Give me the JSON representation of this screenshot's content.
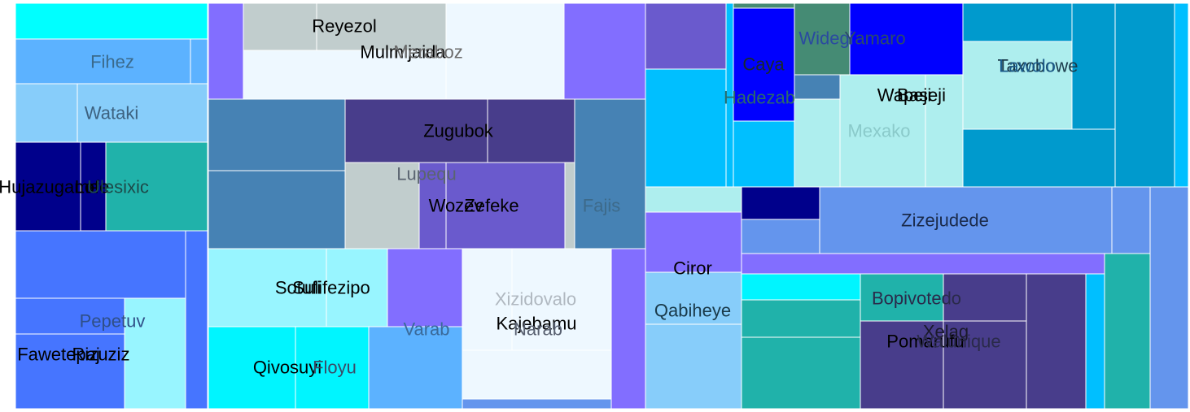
{
  "chart_data": {
    "type": "treemap",
    "title": "",
    "tiles": [
      {
        "label": "",
        "color": "#00ffff"
      },
      {
        "label": "Fihez",
        "color": "#5cb2ff"
      },
      {
        "label": "",
        "color": "#5cb2ff"
      },
      {
        "label": "Wataki",
        "color": "#87cdfa"
      },
      {
        "label": "",
        "color": "#87cdfa"
      },
      {
        "label": "Hujazugame",
        "color": "#00008b"
      },
      {
        "label": "Lofe",
        "color": "#00008b"
      },
      {
        "label": "Ulesixic",
        "color": "#20b2aa"
      },
      {
        "label": "",
        "color": "#4675ff"
      },
      {
        "label": "Pepetuv",
        "color": "#4675ff"
      },
      {
        "label": "Fawetepaj",
        "color": "#4675ff"
      },
      {
        "label": "Rizuziz",
        "color": "#98f5ff"
      },
      {
        "label": "",
        "color": "#4675ff"
      },
      {
        "label": "",
        "color": "#826eff"
      },
      {
        "label": "Reyezol",
        "color": "#c1cdcd"
      },
      {
        "label": "Mulmijaida",
        "color": "#eef8ff"
      },
      {
        "label": "Meraboz",
        "color": "#c1cdcd"
      },
      {
        "label": "",
        "color": "#eef8ff"
      },
      {
        "label": "",
        "color": "#826eff"
      },
      {
        "label": "",
        "color": "#4682b4"
      },
      {
        "label": "",
        "color": "#4682b4"
      },
      {
        "label": "Zugubok",
        "color": "#483d8b"
      },
      {
        "label": "",
        "color": "#483d8b"
      },
      {
        "label": "Lupequ",
        "color": "#c1cdcd"
      },
      {
        "label": "Wozev",
        "color": "#6a5acd"
      },
      {
        "label": "Zefeke",
        "color": "#6a5acd"
      },
      {
        "label": "",
        "color": "#c1cdcd"
      },
      {
        "label": "Fajis",
        "color": "#4682b4"
      },
      {
        "label": "Sotufi",
        "color": "#98f5ff"
      },
      {
        "label": "Sulifezipo",
        "color": "#98f5ff"
      },
      {
        "label": "",
        "color": "#826eff"
      },
      {
        "label": "Qivosuyi",
        "color": "#00f5ff"
      },
      {
        "label": "Floyu",
        "color": "#00f5ff"
      },
      {
        "label": "Varab",
        "color": "#5cb2ff"
      },
      {
        "label": "Xizidovalo",
        "color": "#eef8ff"
      },
      {
        "label": "Kajebamu",
        "color": "#eef8ff"
      },
      {
        "label": "Narab",
        "color": "#eef8ff"
      },
      {
        "label": "",
        "color": "#6495ed"
      },
      {
        "label": "",
        "color": "#826eff"
      },
      {
        "label": "",
        "color": "#6a5acd"
      },
      {
        "label": "",
        "color": "#00bfff"
      },
      {
        "label": "",
        "color": "#00bfff"
      },
      {
        "label": "Hadezab",
        "color": "#00bfff"
      },
      {
        "label": "",
        "color": "#0000ff"
      },
      {
        "label": "Caya",
        "color": "#458b74"
      },
      {
        "label": "",
        "color": "#458b74"
      },
      {
        "label": "Widegi",
        "color": "#0000ff"
      },
      {
        "label": "Yamaro",
        "color": "#4682b4"
      },
      {
        "label": "Mexako",
        "color": "#aeeeee"
      },
      {
        "label": "",
        "color": "#aeeeee"
      },
      {
        "label": "Wapeji",
        "color": "#aeeeee"
      },
      {
        "label": "Baseji",
        "color": "#aeeeee"
      },
      {
        "label": "Taxobowe",
        "color": "#009acd"
      },
      {
        "label": "Lawolo",
        "color": "#009acd"
      },
      {
        "label": "",
        "color": "#009acd"
      },
      {
        "label": "",
        "color": "#009acd"
      },
      {
        "label": "",
        "color": "#00bfff"
      },
      {
        "label": "",
        "color": "#aeeeee"
      },
      {
        "label": "",
        "color": "#826eff"
      },
      {
        "label": "Ciror",
        "color": "#87cdfa"
      },
      {
        "label": "Qabiheye",
        "color": "#87cdfa"
      },
      {
        "label": "",
        "color": "#00008b"
      },
      {
        "label": "",
        "color": "#6495ed"
      },
      {
        "label": "",
        "color": "#6495ed"
      },
      {
        "label": "Zizejudede",
        "color": "#6495ed"
      },
      {
        "label": "",
        "color": "#6495ed"
      },
      {
        "label": "",
        "color": "#826eff"
      },
      {
        "label": "",
        "color": "#00f5ff"
      },
      {
        "label": "",
        "color": "#20b2aa"
      },
      {
        "label": "",
        "color": "#20b2aa"
      },
      {
        "label": "",
        "color": "#20b2aa"
      },
      {
        "label": "Bopivotedo",
        "color": "#483d8b"
      },
      {
        "label": "Pomarufu",
        "color": "#483d8b"
      },
      {
        "label": "Xelag",
        "color": "#483d8b"
      },
      {
        "label": "Walunique",
        "color": "#483d8b"
      },
      {
        "label": "",
        "color": "#00bfff"
      },
      {
        "label": "",
        "color": "#20b2aa"
      },
      {
        "label": "",
        "color": "#00f5ff"
      }
    ]
  }
}
